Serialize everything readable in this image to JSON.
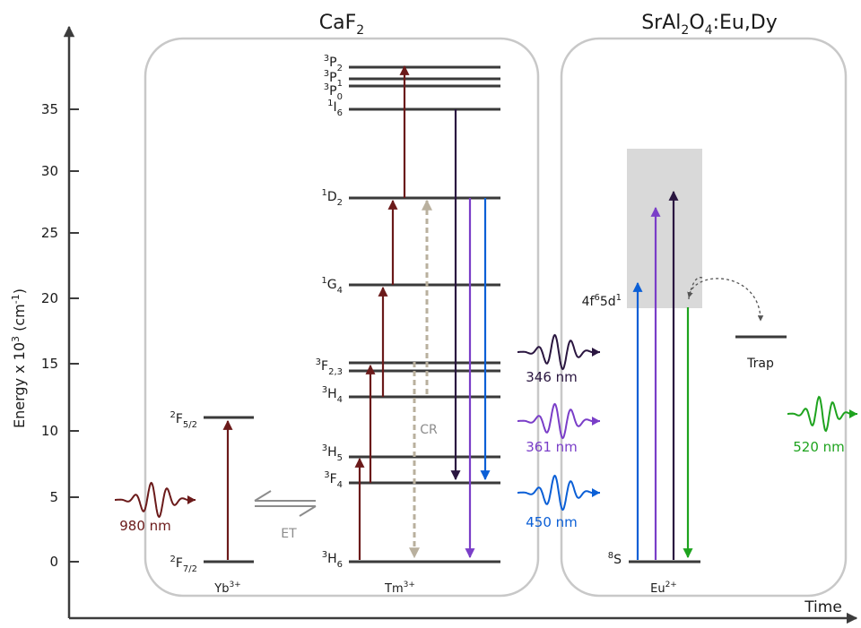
{
  "titles": {
    "left": {
      "base": "CaF",
      "sub": "2"
    },
    "right": {
      "p1": "SrAl",
      "s1": "2",
      "p2": "O",
      "s2": "4",
      "p3": ":Eu,Dy"
    }
  },
  "y_axis": {
    "label_main": "Energy x 10",
    "label_sup": "3",
    "label_unit_open": " (cm",
    "label_unit_sup": "-1",
    "label_unit_close": ")",
    "ticks": [
      "0",
      "5",
      "10",
      "15",
      "20",
      "25",
      "30",
      "35"
    ]
  },
  "x_axis": {
    "label": "Time"
  },
  "ions": {
    "yb": {
      "base": "Yb",
      "sup": "3+"
    },
    "tm": {
      "base": "Tm",
      "sup": "3+"
    },
    "eu": {
      "base": "Eu",
      "sup": "2+"
    }
  },
  "yb_levels": {
    "f52": {
      "sup": "2",
      "base": "F",
      "sub": "5/2"
    },
    "f72": {
      "sup": "2",
      "base": "F",
      "sub": "7/2"
    }
  },
  "tm_levels": {
    "p2": {
      "sup": "3",
      "base": "P",
      "sub": "2"
    },
    "p1": {
      "sup": "3",
      "base": "P",
      "sub": "1"
    },
    "p0": {
      "sup": "3",
      "base": "P",
      "sub": "0"
    },
    "i6": {
      "sup": "1",
      "base": "I",
      "sub": "6"
    },
    "d2": {
      "sup": "1",
      "base": "D",
      "sub": "2"
    },
    "g4": {
      "sup": "1",
      "base": "G",
      "sub": "4"
    },
    "f23": {
      "sup": "3",
      "base": "F",
      "sub": "2,3"
    },
    "h4": {
      "sup": "3",
      "base": "H",
      "sub": "4"
    },
    "h5": {
      "sup": "3",
      "base": "H",
      "sub": "5"
    },
    "f4": {
      "sup": "3",
      "base": "F",
      "sub": "4"
    },
    "h6": {
      "sup": "3",
      "base": "H",
      "sub": "6"
    }
  },
  "eu_levels": {
    "excited": {
      "p1": "4f",
      "s1": "6",
      "p2": "5d",
      "s2": "1"
    },
    "ground": {
      "sup": "8",
      "base": "S"
    }
  },
  "labels": {
    "et": "ET",
    "cr": "CR",
    "trap": "Trap"
  },
  "wavelengths": {
    "w980": "980 nm",
    "w346": "346 nm",
    "w361": "361 nm",
    "w450": "450 nm",
    "w520": "520 nm"
  },
  "colors": {
    "dark_red": "#6b1a1a",
    "dark_purple": "#2a1640",
    "purple": "#7a3ec8",
    "blue": "#0b5fd6",
    "green": "#1ea31e",
    "cr_beige": "#b9b09e",
    "band_gray": "#d9d9d9"
  }
}
